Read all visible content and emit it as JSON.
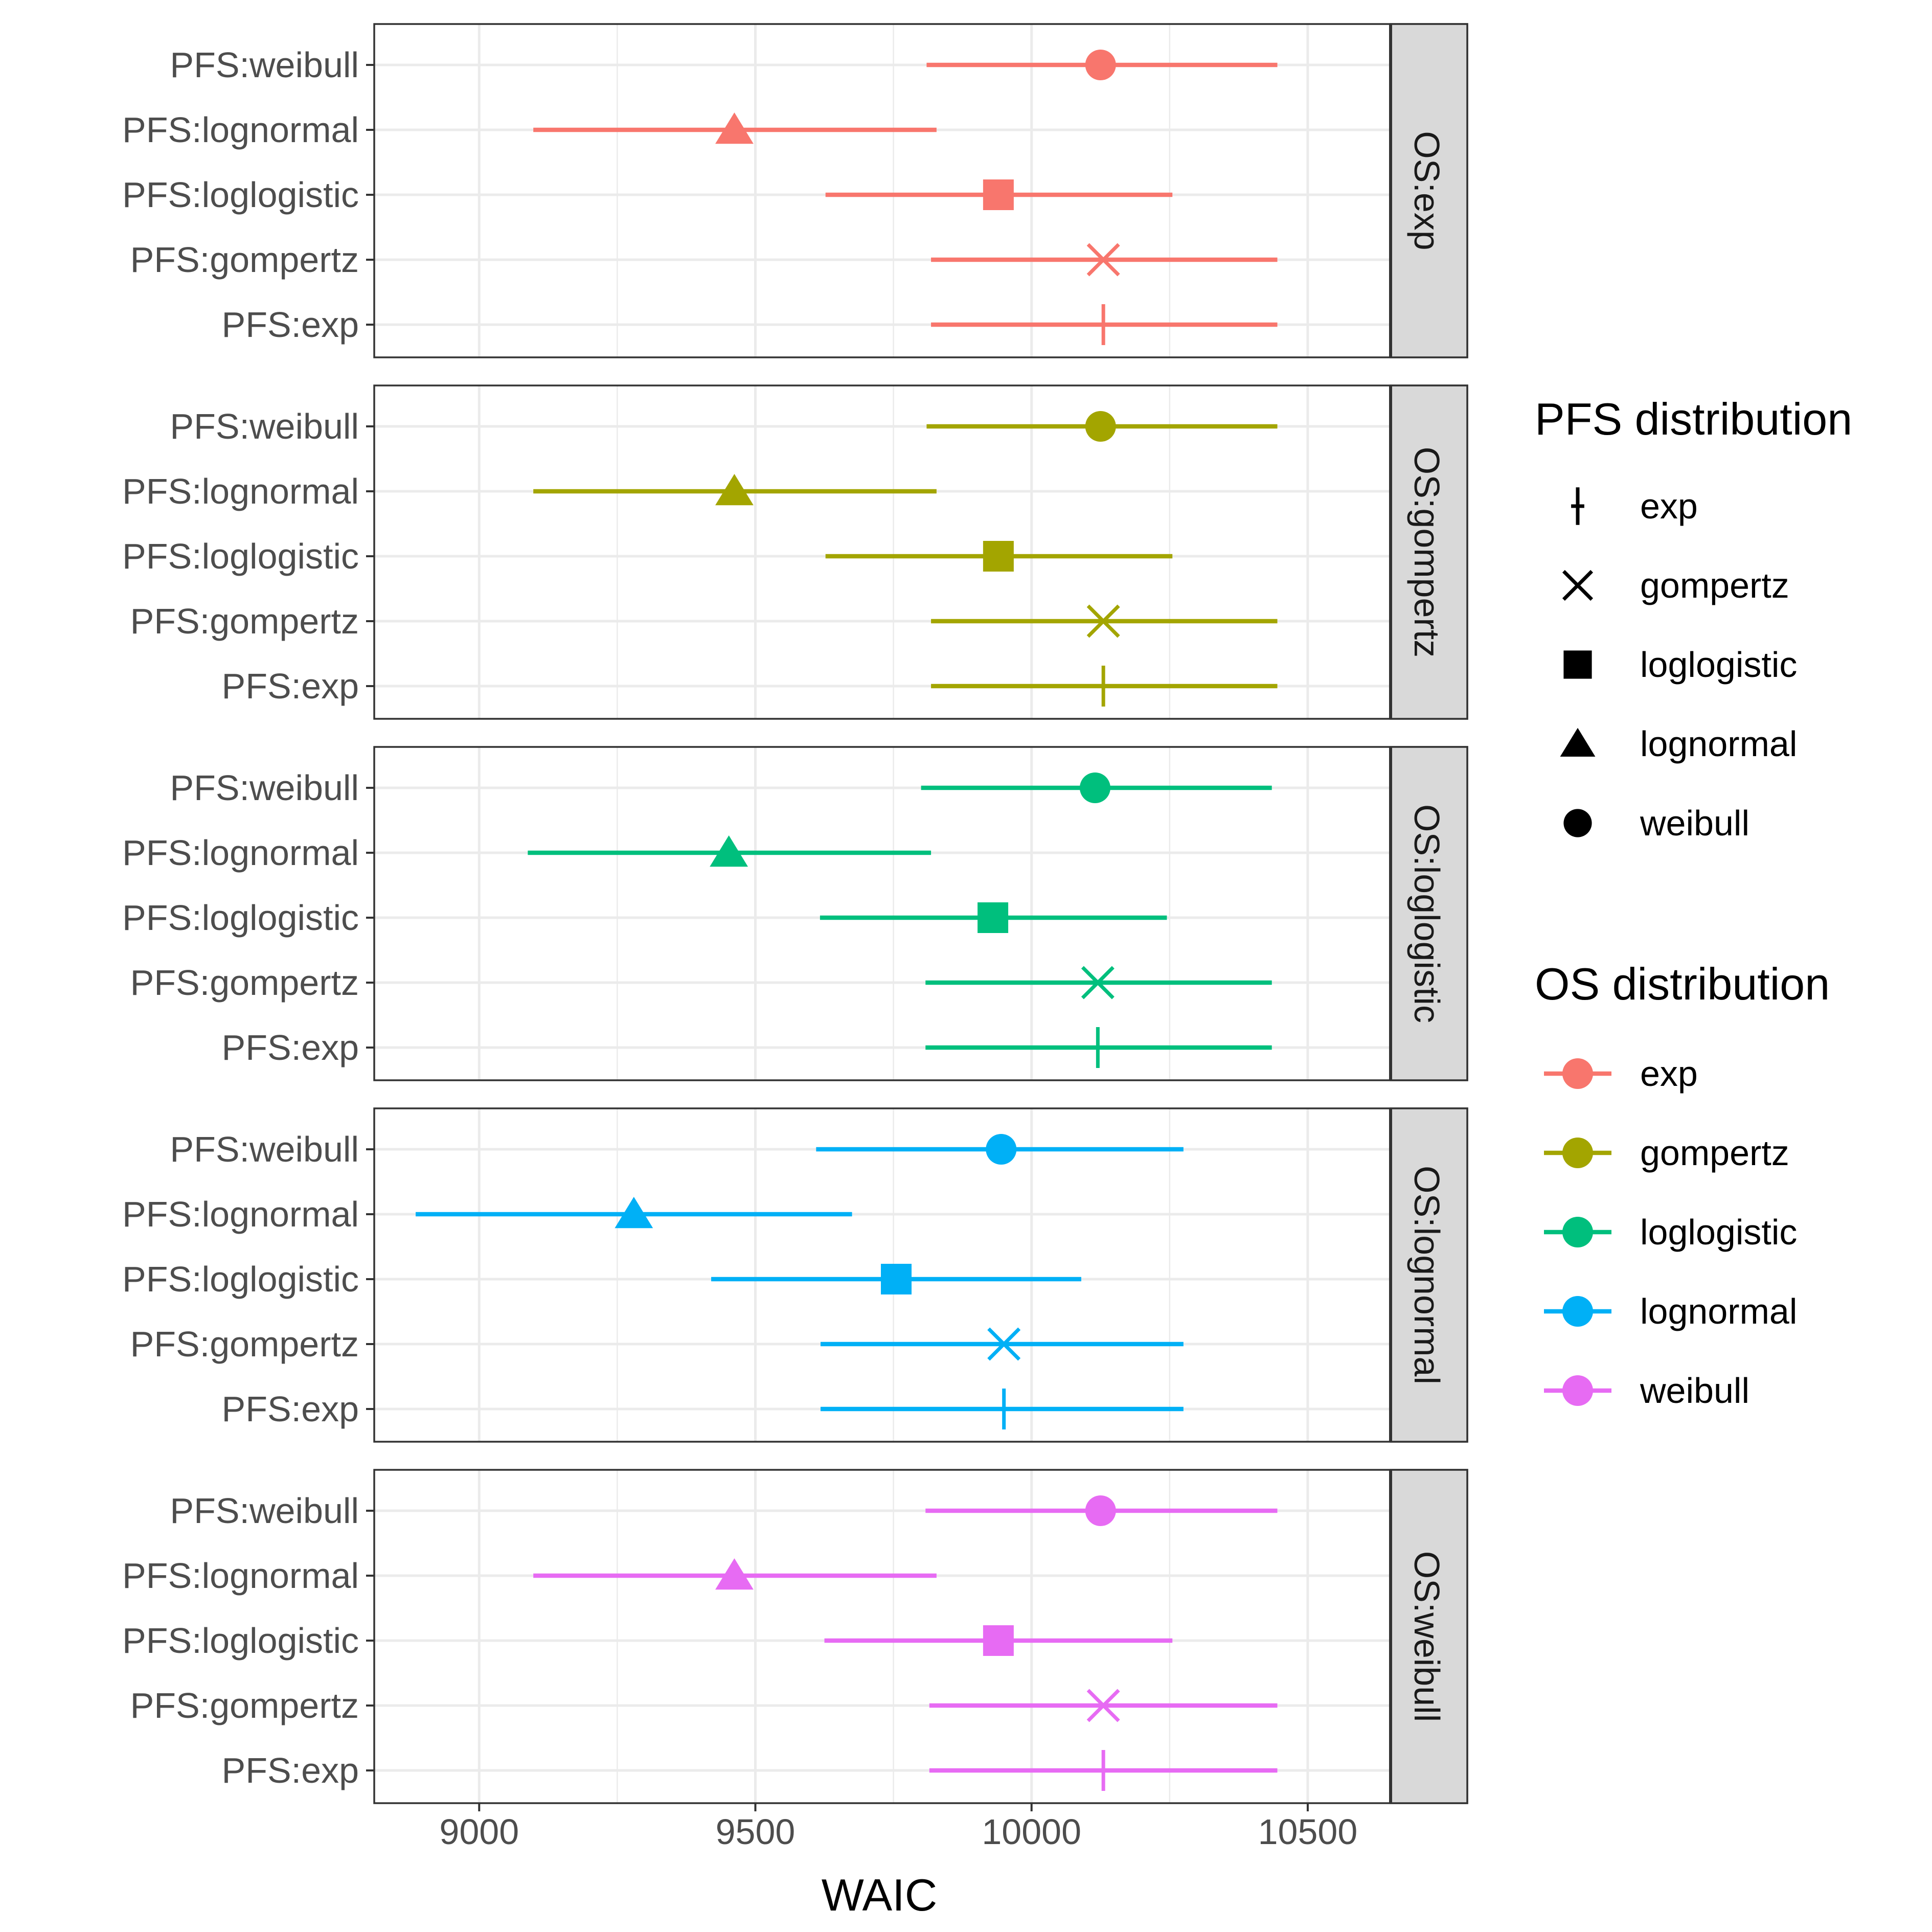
{
  "chart_data": {
    "type": "scatter",
    "subtype": "faceted point-range (errorbar) plot",
    "xlabel": "WAIC",
    "ylabel": "",
    "xlim": [
      8810,
      10650
    ],
    "x_ticks": [
      9000,
      9500,
      10000,
      10500
    ],
    "x_tick_labels": [
      "9000",
      "9500",
      "10000",
      "10500"
    ],
    "grid": true,
    "facet_by": "OS distribution",
    "facets": [
      "OS:exp",
      "OS:gompertz",
      "OS:loglogistic",
      "OS:lognormal",
      "OS:weibull"
    ],
    "categories": [
      "PFS:weibull",
      "PFS:lognormal",
      "PFS:loglogistic",
      "PFS:gompertz",
      "PFS:exp"
    ],
    "category_shapes": [
      "weibull",
      "lognormal",
      "loglogistic",
      "gompertz",
      "exp"
    ],
    "colors": {
      "exp": "#F8766D",
      "gompertz": "#A3A500",
      "loglogistic": "#00BF7D",
      "lognormal": "#00B0F6",
      "weibull": "#E76BF3"
    },
    "series": [
      {
        "facet": "OS:exp",
        "os": "exp",
        "points": [
          {
            "pfs": "weibull",
            "estimate": 10125,
            "lower": 9810,
            "upper": 10445
          },
          {
            "pfs": "lognormal",
            "estimate": 9462,
            "lower": 9098,
            "upper": 9828
          },
          {
            "pfs": "loglogistic",
            "estimate": 9940,
            "lower": 9627,
            "upper": 10255
          },
          {
            "pfs": "gompertz",
            "estimate": 10130,
            "lower": 9818,
            "upper": 10445
          },
          {
            "pfs": "exp",
            "estimate": 10130,
            "lower": 9818,
            "upper": 10445
          }
        ]
      },
      {
        "facet": "OS:gompertz",
        "os": "gompertz",
        "points": [
          {
            "pfs": "weibull",
            "estimate": 10125,
            "lower": 9810,
            "upper": 10445
          },
          {
            "pfs": "lognormal",
            "estimate": 9462,
            "lower": 9098,
            "upper": 9828
          },
          {
            "pfs": "loglogistic",
            "estimate": 9940,
            "lower": 9627,
            "upper": 10255
          },
          {
            "pfs": "gompertz",
            "estimate": 10130,
            "lower": 9818,
            "upper": 10445
          },
          {
            "pfs": "exp",
            "estimate": 10130,
            "lower": 9818,
            "upper": 10445
          }
        ]
      },
      {
        "facet": "OS:loglogistic",
        "os": "loglogistic",
        "points": [
          {
            "pfs": "weibull",
            "estimate": 10115,
            "lower": 9800,
            "upper": 10435
          },
          {
            "pfs": "lognormal",
            "estimate": 9452,
            "lower": 9088,
            "upper": 9818
          },
          {
            "pfs": "loglogistic",
            "estimate": 9930,
            "lower": 9617,
            "upper": 10245
          },
          {
            "pfs": "gompertz",
            "estimate": 10120,
            "lower": 9808,
            "upper": 10435
          },
          {
            "pfs": "exp",
            "estimate": 10120,
            "lower": 9808,
            "upper": 10435
          }
        ]
      },
      {
        "facet": "OS:lognormal",
        "os": "lognormal",
        "points": [
          {
            "pfs": "weibull",
            "estimate": 9945,
            "lower": 9610,
            "upper": 10275
          },
          {
            "pfs": "lognormal",
            "estimate": 9280,
            "lower": 8885,
            "upper": 9675
          },
          {
            "pfs": "loglogistic",
            "estimate": 9755,
            "lower": 9420,
            "upper": 10090
          },
          {
            "pfs": "gompertz",
            "estimate": 9950,
            "lower": 9618,
            "upper": 10275
          },
          {
            "pfs": "exp",
            "estimate": 9950,
            "lower": 9618,
            "upper": 10275
          }
        ]
      },
      {
        "facet": "OS:weibull",
        "os": "weibull",
        "points": [
          {
            "pfs": "weibull",
            "estimate": 10125,
            "lower": 9808,
            "upper": 10445
          },
          {
            "pfs": "lognormal",
            "estimate": 9462,
            "lower": 9098,
            "upper": 9828
          },
          {
            "pfs": "loglogistic",
            "estimate": 9940,
            "lower": 9625,
            "upper": 10255
          },
          {
            "pfs": "gompertz",
            "estimate": 10130,
            "lower": 9815,
            "upper": 10445
          },
          {
            "pfs": "exp",
            "estimate": 10130,
            "lower": 9815,
            "upper": 10445
          }
        ]
      }
    ],
    "legends": [
      {
        "title": "PFS distribution",
        "kind": "shape",
        "entries": [
          {
            "label": "exp",
            "shape": "exp"
          },
          {
            "label": "gompertz",
            "shape": "gompertz"
          },
          {
            "label": "loglogistic",
            "shape": "loglogistic"
          },
          {
            "label": "lognormal",
            "shape": "lognormal"
          },
          {
            "label": "weibull",
            "shape": "weibull"
          }
        ]
      },
      {
        "title": "OS distribution",
        "kind": "color",
        "entries": [
          {
            "label": "exp",
            "color": "#F8766D"
          },
          {
            "label": "gompertz",
            "color": "#A3A500"
          },
          {
            "label": "loglogistic",
            "color": "#00BF7D"
          },
          {
            "label": "lognormal",
            "color": "#00B0F6"
          },
          {
            "label": "weibull",
            "color": "#E76BF3"
          }
        ]
      }
    ],
    "legend_position": "right"
  }
}
